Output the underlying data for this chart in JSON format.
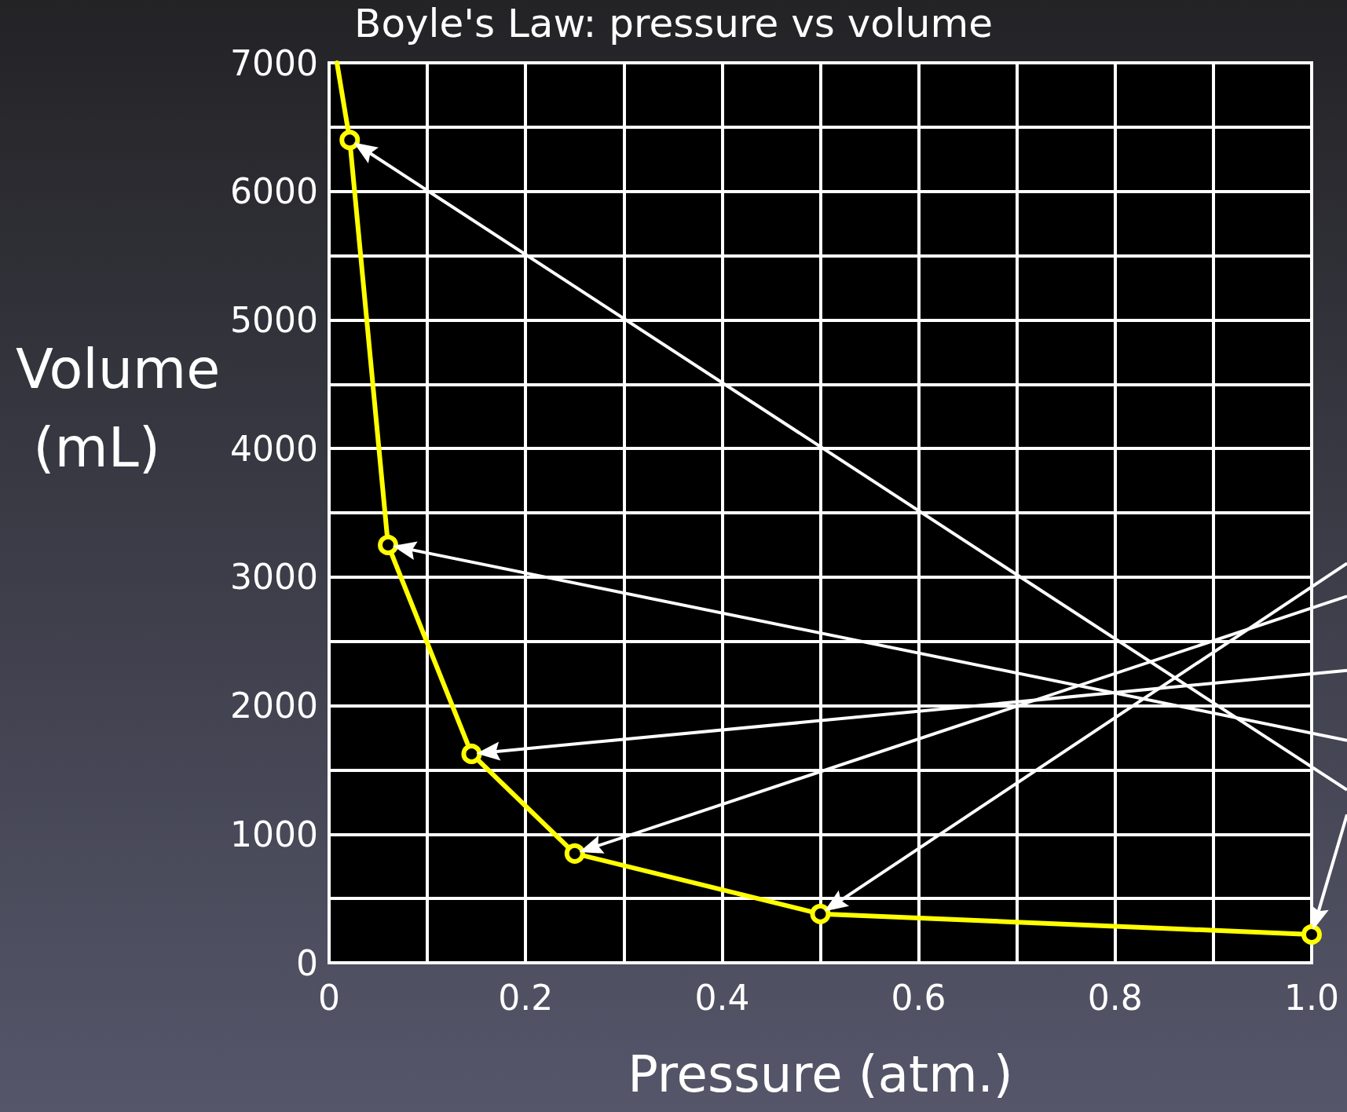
{
  "chart_data": {
    "type": "line",
    "title": "Boyle's Law: pressure vs volume",
    "xlabel": "Pressure (atm.)",
    "ylabel": "Volume (mL)",
    "series": [
      {
        "color": "#ffff00",
        "x": [
          0.008,
          0.021,
          0.06,
          0.145,
          0.25,
          0.5,
          1.0
        ],
        "values": [
          7000,
          6400,
          3250,
          1625,
          850,
          380,
          220
        ]
      }
    ],
    "xlim": [
      0,
      1
    ],
    "xticks": [
      0,
      {
        "value": 0.1,
        "label": null
      },
      0.2,
      {
        "value": 0.3,
        "label": null
      },
      0.4,
      {
        "value": 0.5,
        "label": null
      },
      0.6,
      {
        "value": 0.7,
        "label": null
      },
      0.8,
      {
        "value": 0.9,
        "label": null
      },
      {
        "value": 1,
        "label": "1.0"
      }
    ],
    "ylim": [
      0,
      7000
    ],
    "yticks": [
      0,
      {
        "value": 500,
        "label": null
      },
      1000,
      {
        "value": 1500,
        "label": null
      },
      2000,
      {
        "value": 2500,
        "label": null
      },
      3000,
      {
        "value": 3500,
        "label": null
      },
      4000,
      {
        "value": 4500,
        "label": null
      },
      5000,
      {
        "value": 5500,
        "label": null
      },
      6000,
      {
        "value": 6500,
        "label": null
      },
      7000
    ],
    "grid": true,
    "marker": "circle",
    "line_style": "solid"
  }
}
